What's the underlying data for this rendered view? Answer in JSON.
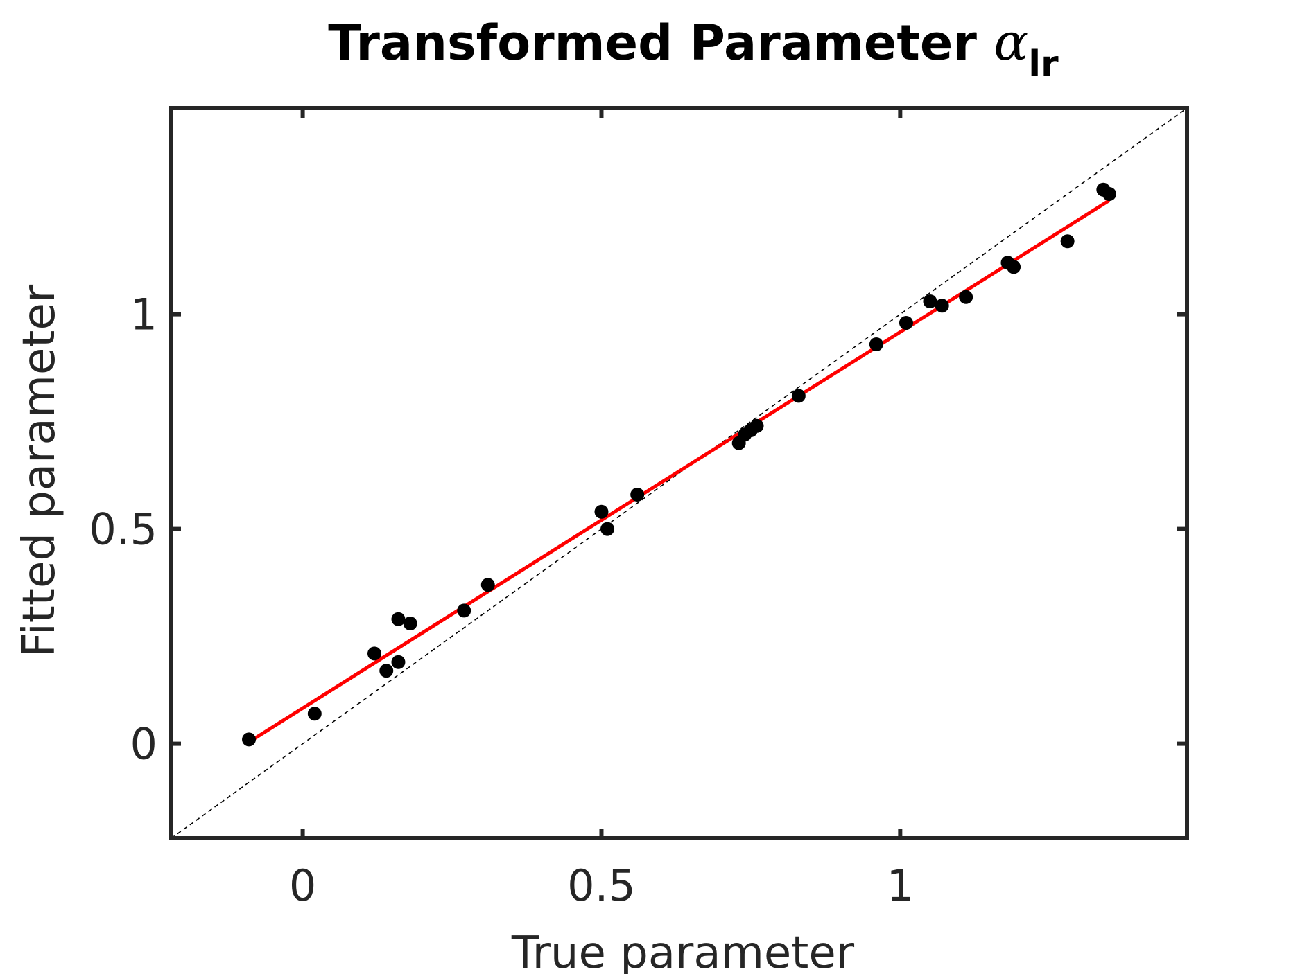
{
  "chart_data": {
    "type": "scatter",
    "title": {
      "main": "Transformed Parameter ",
      "symbol": "α",
      "subscript": "lr"
    },
    "xlabel": "True parameter",
    "ylabel": "Fitted parameter",
    "xlim": [
      -0.22,
      1.48
    ],
    "ylim": [
      -0.22,
      1.48
    ],
    "xticks": [
      0,
      0.5,
      1
    ],
    "yticks": [
      0,
      0.5,
      1
    ],
    "xtick_labels": [
      "0",
      "0.5",
      "1"
    ],
    "ytick_labels": [
      "0",
      "0.5",
      "1"
    ],
    "grid": false,
    "legend": "none",
    "colors": {
      "points": "#000000",
      "fit_line": "#ff0000",
      "identity_line": "#000000",
      "axes": "#262626"
    },
    "series": [
      {
        "kind": "scatter",
        "x": [
          -0.09,
          0.02,
          0.12,
          0.14,
          0.16,
          0.16,
          0.18,
          0.27,
          0.31,
          0.5,
          0.51,
          0.56,
          0.73,
          0.74,
          0.75,
          0.76,
          0.83,
          0.96,
          1.01,
          1.05,
          1.07,
          1.11,
          1.18,
          1.19,
          1.28,
          1.34,
          1.35
        ],
        "y": [
          0.01,
          0.07,
          0.21,
          0.17,
          0.19,
          0.29,
          0.28,
          0.31,
          0.37,
          0.54,
          0.5,
          0.58,
          0.7,
          0.72,
          0.73,
          0.74,
          0.81,
          0.93,
          0.98,
          1.03,
          1.02,
          1.04,
          1.12,
          1.11,
          1.17,
          1.29,
          1.28
        ]
      },
      {
        "kind": "fit_line",
        "x": [
          -0.09,
          1.35
        ],
        "y": [
          0.004,
          1.265
        ]
      },
      {
        "kind": "identity_line",
        "x": [
          -0.22,
          1.48
        ],
        "y": [
          -0.22,
          1.48
        ]
      }
    ]
  }
}
